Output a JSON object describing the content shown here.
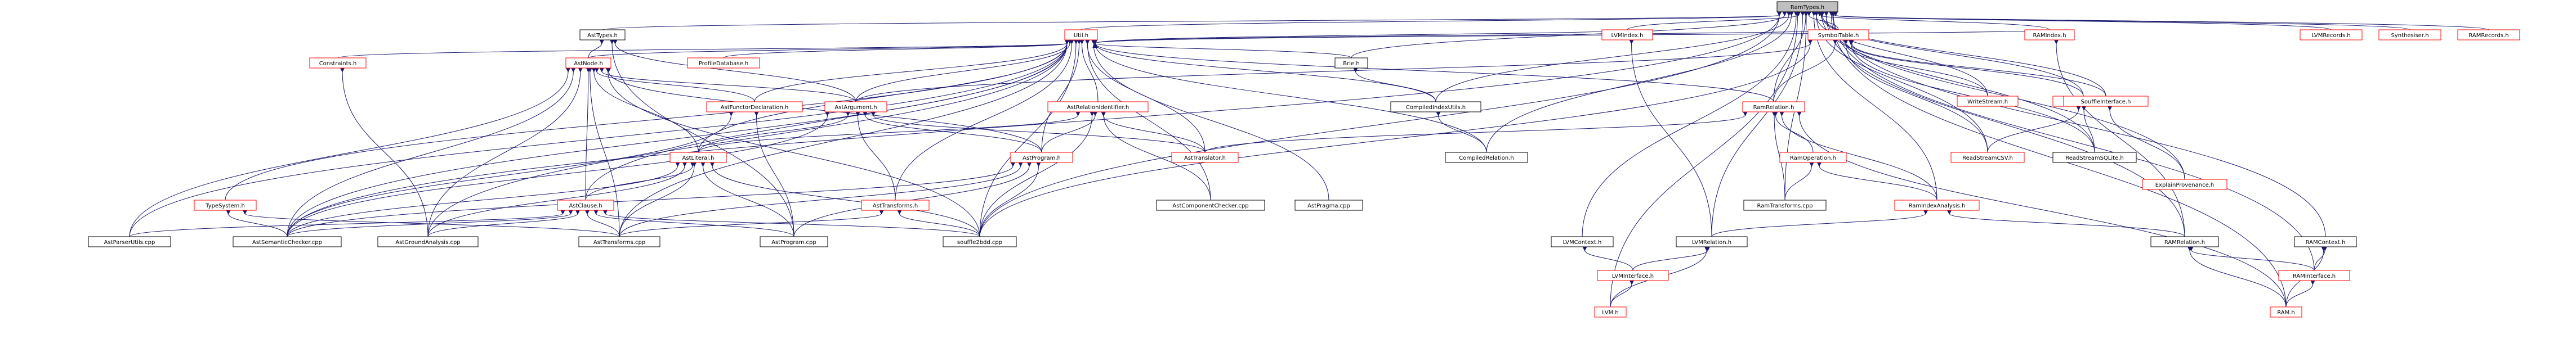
{
  "graph": {
    "title": "RamTypes.h",
    "root": "RamTypes.h",
    "link_color": "#ff0000",
    "edge_color": "#191970",
    "nodes": [
      {
        "id": "ramtypes",
        "label": "RamTypes.h",
        "kind": "root"
      },
      {
        "id": "asttypes",
        "label": "AstTypes.h",
        "kind": "plain"
      },
      {
        "id": "utilh",
        "label": "Util.h",
        "kind": "link"
      },
      {
        "id": "lvmrecords",
        "label": "LVMRecords.h",
        "kind": "link"
      },
      {
        "id": "synthesiser",
        "label": "Synthesiser.h",
        "kind": "link"
      },
      {
        "id": "ramrecords",
        "label": "RAMRecords.h",
        "kind": "link"
      },
      {
        "id": "astnode",
        "label": "AstNode.h",
        "kind": "link"
      },
      {
        "id": "constraints",
        "label": "Constraints.h",
        "kind": "link"
      },
      {
        "id": "profiledb",
        "label": "ProfileDatabase.h",
        "kind": "link"
      },
      {
        "id": "brieh",
        "label": "Brie.h",
        "kind": "plain"
      },
      {
        "id": "lvmindex",
        "label": "LVMIndex.h",
        "kind": "link"
      },
      {
        "id": "symboltable",
        "label": "SymbolTable.h",
        "kind": "link"
      },
      {
        "id": "ramindex",
        "label": "RAMIndex.h",
        "kind": "link"
      },
      {
        "id": "astfunctordecl",
        "label": "AstFunctorDeclaration.h",
        "kind": "link"
      },
      {
        "id": "astargument",
        "label": "AstArgument.h",
        "kind": "link"
      },
      {
        "id": "astrelationid",
        "label": "AstRelationIdentifier.h",
        "kind": "link"
      },
      {
        "id": "compiledindexutils",
        "label": "CompiledIndexUtils.h",
        "kind": "plain"
      },
      {
        "id": "writestream",
        "label": "WriteStream.h",
        "kind": "link"
      },
      {
        "id": "ramrelation",
        "label": "RamRelation.h",
        "kind": "link"
      },
      {
        "id": "readstream",
        "label": "ReadStream.h",
        "kind": "link"
      },
      {
        "id": "souffleinterface",
        "label": "SouffleInterface.h",
        "kind": "link"
      },
      {
        "id": "astliteral",
        "label": "AstLiteral.h",
        "kind": "link"
      },
      {
        "id": "astprogram",
        "label": "AstProgram.h",
        "kind": "link"
      },
      {
        "id": "asttranslator",
        "label": "AstTranslator.h",
        "kind": "link"
      },
      {
        "id": "compiledrelation",
        "label": "CompiledRelation.h",
        "kind": "plain"
      },
      {
        "id": "ramoperation",
        "label": "RamOperation.h",
        "kind": "link"
      },
      {
        "id": "readstreamcsv",
        "label": "ReadStreamCSV.h",
        "kind": "link"
      },
      {
        "id": "readstreamsqlite",
        "label": "ReadStreamSQLite.h",
        "kind": "plain"
      },
      {
        "id": "explainprovenance",
        "label": "ExplainProvenance.h",
        "kind": "link"
      },
      {
        "id": "typesystem",
        "label": "TypeSystem.h",
        "kind": "link"
      },
      {
        "id": "astclause",
        "label": "AstClause.h",
        "kind": "link"
      },
      {
        "id": "asttransforms",
        "label": "AstTransforms.h",
        "kind": "link"
      },
      {
        "id": "astcomponentchecker",
        "label": "AstComponentChecker.cpp",
        "kind": "plain"
      },
      {
        "id": "astpragma",
        "label": "AstPragma.cpp",
        "kind": "plain"
      },
      {
        "id": "ramtransforms",
        "label": "RamTransforms.cpp",
        "kind": "plain"
      },
      {
        "id": "ramindexanalysis",
        "label": "RamIndexAnalysis.h",
        "kind": "link"
      },
      {
        "id": "lvmcontext",
        "label": "LVMContext.h",
        "kind": "plain"
      },
      {
        "id": "ramcontext",
        "label": "RAMContext.h",
        "kind": "plain"
      },
      {
        "id": "astparserutils",
        "label": "AstParserUtils.cpp",
        "kind": "plain"
      },
      {
        "id": "astsemanticchecker",
        "label": "AstSemanticChecker.cpp",
        "kind": "plain"
      },
      {
        "id": "astgroundanalysis",
        "label": "AstGroundAnalysis.cpp",
        "kind": "plain"
      },
      {
        "id": "asttransformscpp",
        "label": "AstTransforms.cpp",
        "kind": "plain"
      },
      {
        "id": "astprogramcpp",
        "label": "AstProgram.cpp",
        "kind": "plain"
      },
      {
        "id": "souffle2bdd",
        "label": "souffle2bdd.cpp",
        "kind": "plain"
      },
      {
        "id": "lvmrelation",
        "label": "LVMRelation.h",
        "kind": "plain"
      },
      {
        "id": "ramrelationh",
        "label": "RAMRelation.h",
        "kind": "plain"
      },
      {
        "id": "lvminterface",
        "label": "LVMInterface.h",
        "kind": "link"
      },
      {
        "id": "raminterface",
        "label": "RAMInterface.h",
        "kind": "link"
      },
      {
        "id": "lvmh",
        "label": "LVM.h",
        "kind": "link"
      },
      {
        "id": "ramh",
        "label": "RAM.h",
        "kind": "link"
      }
    ],
    "edges": [
      [
        "ramtypes",
        "asttypes"
      ],
      [
        "ramtypes",
        "utilh"
      ],
      [
        "ramtypes",
        "lvmrecords"
      ],
      [
        "ramtypes",
        "synthesiser"
      ],
      [
        "ramtypes",
        "ramrecords"
      ],
      [
        "ramtypes",
        "brieh"
      ],
      [
        "ramtypes",
        "lvmindex"
      ],
      [
        "ramtypes",
        "symboltable"
      ],
      [
        "ramtypes",
        "ramindex"
      ],
      [
        "ramtypes",
        "compiledindexutils"
      ],
      [
        "ramtypes",
        "compiledrelation"
      ],
      [
        "ramtypes",
        "writestream"
      ],
      [
        "ramtypes",
        "ramrelation"
      ],
      [
        "ramtypes",
        "readstream"
      ],
      [
        "ramtypes",
        "souffleinterface"
      ],
      [
        "ramtypes",
        "readstreamcsv"
      ],
      [
        "ramtypes",
        "readstreamsqlite"
      ],
      [
        "ramtypes",
        "explainprovenance"
      ],
      [
        "ramtypes",
        "ramindexanalysis"
      ],
      [
        "ramtypes",
        "lvmcontext"
      ],
      [
        "ramtypes",
        "ramcontext"
      ],
      [
        "ramtypes",
        "lvmrelation"
      ],
      [
        "ramtypes",
        "ramrelationh"
      ],
      [
        "ramtypes",
        "raminterface"
      ],
      [
        "ramtypes",
        "lvmh"
      ],
      [
        "ramtypes",
        "ramh"
      ],
      [
        "ramtypes",
        "ramtransforms"
      ],
      [
        "ramtypes",
        "souffle2bdd"
      ],
      [
        "ramtypes",
        "astsemanticchecker"
      ],
      [
        "asttypes",
        "astnode"
      ],
      [
        "asttypes",
        "astargument"
      ],
      [
        "asttypes",
        "astprogramcpp"
      ],
      [
        "utilh",
        "astnode"
      ],
      [
        "utilh",
        "constraints"
      ],
      [
        "utilh",
        "profiledb"
      ],
      [
        "utilh",
        "brieh"
      ],
      [
        "utilh",
        "lvmindex"
      ],
      [
        "utilh",
        "symboltable"
      ],
      [
        "utilh",
        "ramindex"
      ],
      [
        "utilh",
        "astfunctordecl"
      ],
      [
        "utilh",
        "astargument"
      ],
      [
        "utilh",
        "astrelationid"
      ],
      [
        "utilh",
        "compiledindexutils"
      ],
      [
        "utilh",
        "ramrelation"
      ],
      [
        "utilh",
        "astliteral"
      ],
      [
        "utilh",
        "astprogram"
      ],
      [
        "utilh",
        "asttranslator"
      ],
      [
        "utilh",
        "compiledrelation"
      ],
      [
        "utilh",
        "typesystem"
      ],
      [
        "utilh",
        "astclause"
      ],
      [
        "utilh",
        "asttransforms"
      ],
      [
        "utilh",
        "astcomponentchecker"
      ],
      [
        "utilh",
        "astpragma"
      ],
      [
        "utilh",
        "astparserutils"
      ],
      [
        "utilh",
        "astsemanticchecker"
      ],
      [
        "utilh",
        "astgroundanalysis"
      ],
      [
        "utilh",
        "asttransformscpp"
      ],
      [
        "utilh",
        "souffle2bdd"
      ],
      [
        "astnode",
        "astfunctordecl"
      ],
      [
        "astnode",
        "astargument"
      ],
      [
        "astnode",
        "astliteral"
      ],
      [
        "astnode",
        "astclause"
      ],
      [
        "astnode",
        "astprogram"
      ],
      [
        "astnode",
        "astparserutils"
      ],
      [
        "astnode",
        "astsemanticchecker"
      ],
      [
        "astnode",
        "astgroundanalysis"
      ],
      [
        "astnode",
        "asttransformscpp"
      ],
      [
        "astnode",
        "souffle2bdd"
      ],
      [
        "constraints",
        "astgroundanalysis"
      ],
      [
        "brieh",
        "compiledindexutils"
      ],
      [
        "lvmindex",
        "lvmrelation"
      ],
      [
        "symboltable",
        "astargument"
      ],
      [
        "symboltable",
        "writestream"
      ],
      [
        "symboltable",
        "ramrelation"
      ],
      [
        "symboltable",
        "readstream"
      ],
      [
        "symboltable",
        "souffleinterface"
      ],
      [
        "symboltable",
        "readstreamcsv"
      ],
      [
        "symboltable",
        "readstreamsqlite"
      ],
      [
        "symboltable",
        "souffle2bdd"
      ],
      [
        "ramindex",
        "ramrelationh"
      ],
      [
        "astfunctordecl",
        "astprogramcpp"
      ],
      [
        "astfunctordecl",
        "astsemanticchecker"
      ],
      [
        "astargument",
        "astliteral"
      ],
      [
        "astargument",
        "asttransforms"
      ],
      [
        "astargument",
        "astprogram"
      ],
      [
        "astargument",
        "asttranslator"
      ],
      [
        "astargument",
        "astsemanticchecker"
      ],
      [
        "astrelationid",
        "astliteral"
      ],
      [
        "astrelationid",
        "astprogram"
      ],
      [
        "astrelationid",
        "asttranslator"
      ],
      [
        "astrelationid",
        "astcomponentchecker"
      ],
      [
        "astrelationid",
        "souffle2bdd"
      ],
      [
        "compiledindexutils",
        "compiledrelation"
      ],
      [
        "ramrelation",
        "ramoperation"
      ],
      [
        "ramrelation",
        "ramtransforms"
      ],
      [
        "ramrelation",
        "ramindexanalysis"
      ],
      [
        "ramrelation",
        "asttranslator"
      ],
      [
        "ramrelation",
        "ramh"
      ],
      [
        "readstream",
        "readstreamcsv"
      ],
      [
        "readstream",
        "readstreamsqlite"
      ],
      [
        "souffleinterface",
        "explainprovenance"
      ],
      [
        "astliteral",
        "astclause"
      ],
      [
        "astliteral",
        "astsemanticchecker"
      ],
      [
        "astliteral",
        "astgroundanalysis"
      ],
      [
        "astliteral",
        "asttransformscpp"
      ],
      [
        "astliteral",
        "astprogramcpp"
      ],
      [
        "astliteral",
        "souffle2bdd"
      ],
      [
        "astprogram",
        "asttransformscpp"
      ],
      [
        "astprogram",
        "astprogramcpp"
      ],
      [
        "astprogram",
        "souffle2bdd"
      ],
      [
        "astprogram",
        "astsemanticchecker"
      ],
      [
        "ramoperation",
        "ramtransforms"
      ],
      [
        "ramoperation",
        "ramindexanalysis"
      ],
      [
        "typesystem",
        "astsemanticchecker"
      ],
      [
        "typesystem",
        "asttransformscpp"
      ],
      [
        "astclause",
        "astparserutils"
      ],
      [
        "astclause",
        "astsemanticchecker"
      ],
      [
        "astclause",
        "astgroundanalysis"
      ],
      [
        "astclause",
        "asttransformscpp"
      ],
      [
        "astclause",
        "astprogramcpp"
      ],
      [
        "astclause",
        "souffle2bdd"
      ],
      [
        "asttransforms",
        "asttransformscpp"
      ],
      [
        "asttransforms",
        "souffle2bdd"
      ],
      [
        "ramindexanalysis",
        "lvmrelation"
      ],
      [
        "ramindexanalysis",
        "ramrelationh"
      ],
      [
        "lvmcontext",
        "lvminterface"
      ],
      [
        "ramcontext",
        "raminterface"
      ],
      [
        "ramcontext",
        "ramh"
      ],
      [
        "lvmrelation",
        "lvminterface"
      ],
      [
        "lvmrelation",
        "lvmh"
      ],
      [
        "ramrelationh",
        "raminterface"
      ],
      [
        "ramrelationh",
        "ramh"
      ],
      [
        "lvminterface",
        "lvmh"
      ],
      [
        "raminterface",
        "ramh"
      ]
    ]
  }
}
